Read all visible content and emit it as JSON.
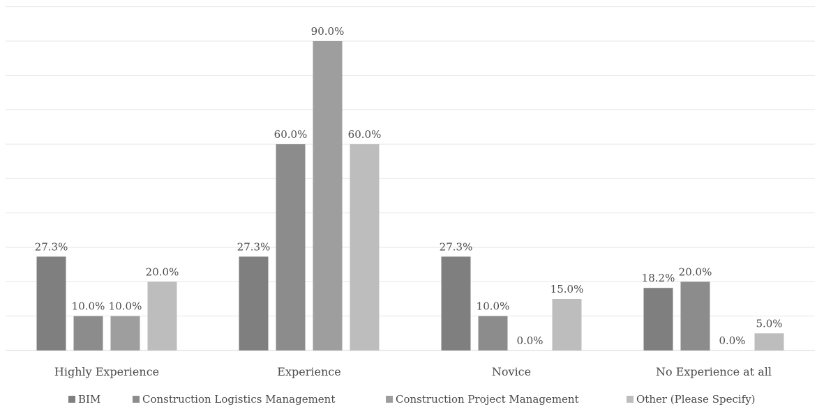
{
  "chart_data": {
    "type": "bar",
    "categories": [
      "Highly Experience",
      "Experience",
      "Novice",
      "No Experience at all"
    ],
    "series": [
      {
        "name": "BIM",
        "color": "#7f7f7f",
        "values": [
          27.3,
          27.3,
          27.3,
          18.2
        ],
        "labels": [
          "27.3%",
          "27.3%",
          "27.3%",
          "18.2%"
        ]
      },
      {
        "name": "Construction Logistics Management",
        "color": "#8c8c8c",
        "values": [
          10.0,
          60.0,
          10.0,
          20.0
        ],
        "labels": [
          "10.0%",
          "60.0%",
          "10.0%",
          "20.0%"
        ]
      },
      {
        "name": "Construction Project Management",
        "color": "#9e9e9e",
        "values": [
          10.0,
          90.0,
          0.0,
          0.0
        ],
        "labels": [
          "10.0%",
          "90.0%",
          "0.0%",
          "0.0%"
        ]
      },
      {
        "name": "Other (Please Specify)",
        "color": "#bdbdbd",
        "values": [
          20.0,
          60.0,
          15.0,
          5.0
        ],
        "labels": [
          "20.0%",
          "60.0%",
          "15.0%",
          "5.0%"
        ]
      }
    ],
    "ylim": [
      0,
      100
    ],
    "grid": true,
    "legend_position": "bottom"
  }
}
